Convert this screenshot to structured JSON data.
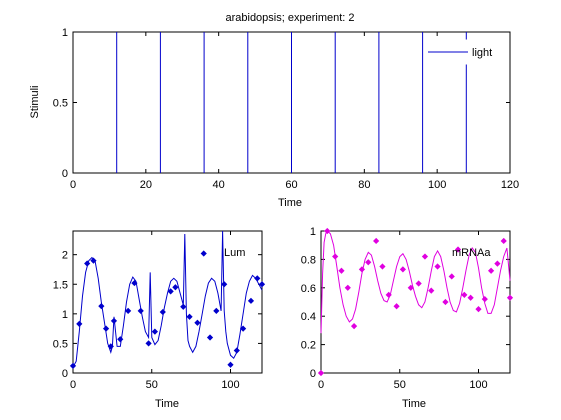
{
  "colors": {
    "stimuli": "#0000cc",
    "lum": "#0000cc",
    "mrna": "#e000e0"
  },
  "chart_data": [
    {
      "type": "line",
      "title": "arabidopsis; experiment: 2",
      "xlabel": "Time",
      "ylabel": "Stimuli",
      "xlim": [
        0,
        120
      ],
      "ylim": [
        0,
        1
      ],
      "xticks": [
        "0",
        "20",
        "40",
        "60",
        "80",
        "100",
        "120"
      ],
      "yticks": [
        "0",
        "0.5",
        "1"
      ],
      "legend": {
        "placement": "top-right",
        "entries": [
          "light"
        ]
      },
      "series": [
        {
          "name": "light",
          "kind": "impulses",
          "x": [
            12,
            24,
            36,
            48,
            60,
            72,
            84,
            96,
            108
          ],
          "y": 1
        }
      ]
    },
    {
      "type": "line",
      "xlabel": "Time",
      "xlim": [
        0,
        120
      ],
      "ylim": [
        0,
        2.4
      ],
      "xticks": [
        "0",
        "50",
        "100"
      ],
      "yticks": [
        "0",
        "0.5",
        "1",
        "1.5",
        "2"
      ],
      "annotation": "Lum",
      "series": [
        {
          "kind": "model-line",
          "x": [
            0,
            2,
            4,
            6,
            8,
            10,
            12,
            14,
            16,
            18,
            20,
            22,
            24,
            25,
            26,
            28,
            30,
            32,
            34,
            36,
            38,
            40,
            42,
            44,
            46,
            48,
            49,
            50,
            52,
            54,
            56,
            58,
            60,
            62,
            64,
            66,
            68,
            70,
            71,
            72,
            73,
            74,
            76,
            78,
            80,
            82,
            84,
            86,
            88,
            90,
            92,
            94,
            95,
            96,
            97,
            98,
            100,
            102,
            104,
            106,
            108,
            110,
            112,
            114,
            116,
            118,
            120
          ],
          "y": [
            0.1,
            0.2,
            0.7,
            1.3,
            1.7,
            1.9,
            1.95,
            1.9,
            1.6,
            1.2,
            0.85,
            0.5,
            0.35,
            0.45,
            0.95,
            0.45,
            0.45,
            0.8,
            1.2,
            1.5,
            1.62,
            1.55,
            1.25,
            0.95,
            0.7,
            0.6,
            1.7,
            0.6,
            0.48,
            0.55,
            0.8,
            1.1,
            1.35,
            1.55,
            1.6,
            1.55,
            1.35,
            1.15,
            2.35,
            1.0,
            0.55,
            0.45,
            0.35,
            0.45,
            0.7,
            1.0,
            1.3,
            1.52,
            1.6,
            1.55,
            1.35,
            1.05,
            2.45,
            1.05,
            0.7,
            0.5,
            0.3,
            0.25,
            0.35,
            0.65,
            1.0,
            1.35,
            1.55,
            1.65,
            1.6,
            1.5,
            1.4
          ]
        },
        {
          "kind": "measured-points",
          "x": [
            0,
            4,
            9,
            13,
            18,
            21,
            24,
            26,
            30,
            35,
            39,
            43,
            48,
            52,
            57,
            62,
            65,
            70,
            74,
            79,
            83,
            87,
            91,
            96,
            100,
            104,
            108,
            113,
            117,
            120
          ],
          "y": [
            0.12,
            0.83,
            1.85,
            1.9,
            1.13,
            0.75,
            0.45,
            0.88,
            0.57,
            1.05,
            1.52,
            1.05,
            0.5,
            0.7,
            1.03,
            1.38,
            1.45,
            1.12,
            0.95,
            0.85,
            2.02,
            0.6,
            1.05,
            1.5,
            0.14,
            0.38,
            0.75,
            1.22,
            1.6,
            1.5
          ]
        }
      ]
    },
    {
      "type": "line",
      "xlabel": "Time",
      "xlim": [
        0,
        120
      ],
      "ylim": [
        0,
        1
      ],
      "xticks": [
        "0",
        "50",
        "100"
      ],
      "yticks": [
        "0",
        "0.2",
        "0.4",
        "0.6",
        "0.8",
        "1"
      ],
      "annotation": "mRNAa",
      "series": [
        {
          "kind": "model-line",
          "x": [
            0,
            1,
            2,
            3,
            4,
            6,
            8,
            10,
            12,
            14,
            16,
            18,
            20,
            22,
            24,
            26,
            28,
            30,
            32,
            34,
            36,
            38,
            40,
            42,
            44,
            46,
            48,
            50,
            52,
            54,
            56,
            58,
            60,
            62,
            64,
            66,
            68,
            70,
            72,
            74,
            76,
            78,
            80,
            82,
            84,
            86,
            88,
            90,
            92,
            94,
            96,
            98,
            100,
            102,
            104,
            106,
            108,
            110,
            112,
            114,
            116,
            118,
            120
          ],
          "y": [
            0.28,
            0.7,
            0.92,
            0.98,
            1.0,
            0.98,
            0.9,
            0.75,
            0.6,
            0.48,
            0.4,
            0.36,
            0.38,
            0.45,
            0.57,
            0.7,
            0.8,
            0.85,
            0.83,
            0.75,
            0.65,
            0.56,
            0.51,
            0.5,
            0.55,
            0.65,
            0.75,
            0.82,
            0.84,
            0.8,
            0.72,
            0.62,
            0.54,
            0.48,
            0.46,
            0.5,
            0.6,
            0.72,
            0.82,
            0.86,
            0.82,
            0.72,
            0.6,
            0.5,
            0.44,
            0.43,
            0.49,
            0.6,
            0.72,
            0.83,
            0.88,
            0.85,
            0.74,
            0.6,
            0.49,
            0.42,
            0.42,
            0.48,
            0.6,
            0.72,
            0.82,
            0.88,
            0.65
          ]
        },
        {
          "kind": "measured-points",
          "x": [
            0,
            4,
            9,
            13,
            17,
            21,
            26,
            30,
            35,
            39,
            43,
            48,
            52,
            57,
            62,
            66,
            70,
            74,
            79,
            83,
            87,
            91,
            95,
            100,
            104,
            108,
            112,
            116,
            120
          ],
          "y": [
            0.0,
            1.0,
            0.82,
            0.72,
            0.6,
            0.33,
            0.73,
            0.78,
            0.93,
            0.75,
            0.55,
            0.47,
            0.73,
            0.6,
            0.63,
            0.82,
            0.58,
            0.75,
            0.5,
            0.68,
            0.87,
            0.55,
            0.53,
            0.45,
            0.52,
            0.72,
            0.77,
            0.93,
            0.53
          ]
        }
      ]
    }
  ]
}
